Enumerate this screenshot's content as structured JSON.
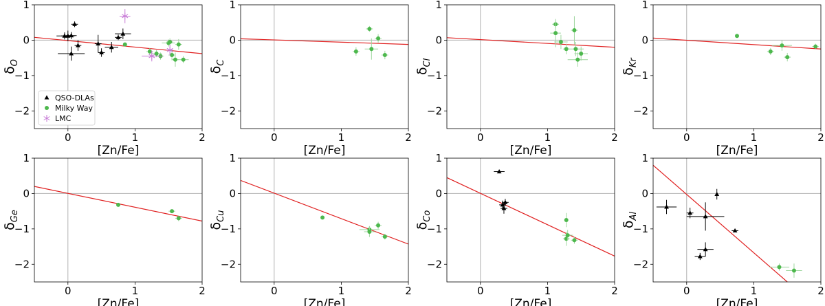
{
  "colors": {
    "qso": "#000000",
    "mw": "#4db84d",
    "mw_err": "#9ed69e",
    "lmc": "#c77ad6",
    "fit": "#e02020",
    "zero": "#b0b0b0"
  },
  "chart_data": [
    {
      "type": "scatter",
      "element": "O",
      "ylabel": "δ",
      "ysub": "O",
      "xlabel": "[Zn/Fe]",
      "xlim": [
        -0.5,
        2
      ],
      "ylim": [
        -2.5,
        1
      ],
      "xticks": [
        0,
        1,
        2
      ],
      "yticks": [
        1,
        0,
        -1,
        -2
      ],
      "fit": {
        "x": [
          -0.5,
          2.0
        ],
        "y": [
          0.08,
          -0.38
        ]
      },
      "legend": {
        "position": "bottom-left",
        "entries": [
          {
            "name": "QSO-DLAs",
            "series": "qso"
          },
          {
            "name": "Milky Way",
            "series": "mw"
          },
          {
            "name": "LMC",
            "series": "lmc"
          }
        ]
      },
      "series": [
        {
          "name": "QSO-DLAs",
          "key": "qso",
          "points": [
            {
              "x": -0.05,
              "y": 0.12,
              "xe": 0.12,
              "ye": 0.1
            },
            {
              "x": 0.0,
              "y": 0.12,
              "xe": 0.1,
              "ye": 0.15
            },
            {
              "x": 0.05,
              "y": 0.13,
              "xe": 0.08,
              "ye": 0.1
            },
            {
              "x": 0.1,
              "y": 0.45,
              "xe": 0.05,
              "ye": 0.08
            },
            {
              "x": 0.05,
              "y": -0.38,
              "xe": 0.2,
              "ye": 0.2
            },
            {
              "x": 0.15,
              "y": -0.15,
              "xe": 0.05,
              "ye": 0.15
            },
            {
              "x": 0.45,
              "y": -0.1,
              "xe": 0.05,
              "ye": 0.25
            },
            {
              "x": 0.5,
              "y": -0.35,
              "xe": 0.05,
              "ye": 0.12
            },
            {
              "x": 0.65,
              "y": -0.2,
              "xe": 0.1,
              "ye": 0.15
            },
            {
              "x": 0.75,
              "y": 0.08,
              "xe": 0.05,
              "ye": 0.08
            },
            {
              "x": 0.82,
              "y": 0.18,
              "xe": 0.12,
              "ye": 0.15
            }
          ]
        },
        {
          "name": "Milky Way",
          "key": "mw",
          "points": [
            {
              "x": 0.85,
              "y": -0.12,
              "xe": 0.0,
              "ye": 0.05
            },
            {
              "x": 1.22,
              "y": -0.32,
              "xe": 0.05,
              "ye": 0.1
            },
            {
              "x": 1.32,
              "y": -0.38,
              "xe": 0.08,
              "ye": 0.1
            },
            {
              "x": 1.38,
              "y": -0.45,
              "xe": 0.05,
              "ye": 0.1
            },
            {
              "x": 1.5,
              "y": -0.08,
              "xe": 0.1,
              "ye": 0.1
            },
            {
              "x": 1.52,
              "y": -0.05,
              "xe": 0.05,
              "ye": 0.1
            },
            {
              "x": 1.55,
              "y": -0.42,
              "xe": 0.05,
              "ye": 0.15
            },
            {
              "x": 1.6,
              "y": -0.55,
              "xe": 0.05,
              "ye": 0.2
            },
            {
              "x": 1.65,
              "y": -0.12,
              "xe": 0.05,
              "ye": 0.15
            },
            {
              "x": 1.72,
              "y": -0.55,
              "xe": 0.08,
              "ye": 0.1
            }
          ]
        },
        {
          "name": "LMC",
          "key": "lmc",
          "points": [
            {
              "x": 0.85,
              "y": 0.68,
              "xe": 0.08,
              "ye": 0.2
            },
            {
              "x": 1.25,
              "y": -0.45,
              "xe": 0.15,
              "ye": 0.15
            },
            {
              "x": 1.52,
              "y": -0.28,
              "xe": 0.05,
              "ye": 0.15
            }
          ]
        }
      ]
    },
    {
      "type": "scatter",
      "element": "C",
      "ylabel": "δ",
      "ysub": "C",
      "xlabel": "[Zn/Fe]",
      "xlim": [
        -0.5,
        2
      ],
      "ylim": [
        -2.5,
        1
      ],
      "xticks": [
        0,
        1,
        2
      ],
      "yticks": [
        1,
        0,
        -1,
        -2
      ],
      "fit": {
        "x": [
          -0.5,
          2.0
        ],
        "y": [
          0.04,
          -0.12
        ]
      },
      "series": [
        {
          "name": "Milky Way",
          "key": "mw",
          "points": [
            {
              "x": 1.22,
              "y": -0.32,
              "xe": 0.05,
              "ye": 0.12
            },
            {
              "x": 1.42,
              "y": 0.32,
              "xe": 0.05,
              "ye": 0.08
            },
            {
              "x": 1.45,
              "y": -0.25,
              "xe": 0.1,
              "ye": 0.3
            },
            {
              "x": 1.55,
              "y": 0.05,
              "xe": 0.05,
              "ye": 0.12
            },
            {
              "x": 1.65,
              "y": -0.42,
              "xe": 0.05,
              "ye": 0.12
            }
          ]
        }
      ]
    },
    {
      "type": "scatter",
      "element": "Cl",
      "ylabel": "δ",
      "ysub": "Cl",
      "xlabel": "[Zn/Fe]",
      "xlim": [
        -0.5,
        2
      ],
      "ylim": [
        -2.5,
        1
      ],
      "xticks": [
        0,
        1,
        2
      ],
      "yticks": [
        1,
        0,
        -1,
        -2
      ],
      "fit": {
        "x": [
          -0.5,
          2.0
        ],
        "y": [
          0.07,
          -0.2
        ]
      },
      "series": [
        {
          "name": "Milky Way",
          "key": "mw",
          "points": [
            {
              "x": 1.12,
              "y": 0.45,
              "xe": 0.05,
              "ye": 0.1
            },
            {
              "x": 1.12,
              "y": 0.2,
              "xe": 0.08,
              "ye": 0.4
            },
            {
              "x": 1.2,
              "y": -0.05,
              "xe": 0.1,
              "ye": 0.2
            },
            {
              "x": 1.28,
              "y": -0.25,
              "xe": 0.05,
              "ye": 0.15
            },
            {
              "x": 1.4,
              "y": 0.28,
              "xe": 0.05,
              "ye": 0.4
            },
            {
              "x": 1.42,
              "y": -0.25,
              "xe": 0.12,
              "ye": 0.2
            },
            {
              "x": 1.45,
              "y": -0.55,
              "xe": 0.15,
              "ye": 0.2
            },
            {
              "x": 1.5,
              "y": -0.38,
              "xe": 0.1,
              "ye": 0.2
            }
          ]
        }
      ]
    },
    {
      "type": "scatter",
      "element": "Kr",
      "ylabel": "δ",
      "ysub": "Kr",
      "xlabel": "[Zn/Fe]",
      "xlim": [
        -0.5,
        2
      ],
      "ylim": [
        -2.5,
        1
      ],
      "xticks": [
        0,
        1,
        2
      ],
      "yticks": [
        1,
        0,
        -1,
        -2
      ],
      "fit": {
        "x": [
          -0.5,
          2.0
        ],
        "y": [
          0.06,
          -0.25
        ]
      },
      "series": [
        {
          "name": "Milky Way",
          "key": "mw",
          "points": [
            {
              "x": 0.75,
              "y": 0.12,
              "xe": 0.0,
              "ye": 0.05
            },
            {
              "x": 1.25,
              "y": -0.32,
              "xe": 0.05,
              "ye": 0.1
            },
            {
              "x": 1.42,
              "y": -0.15,
              "xe": 0.15,
              "ye": 0.15
            },
            {
              "x": 1.5,
              "y": -0.48,
              "xe": 0.05,
              "ye": 0.12
            },
            {
              "x": 1.92,
              "y": -0.18,
              "xe": 0.05,
              "ye": 0.08
            }
          ]
        }
      ]
    },
    {
      "type": "scatter",
      "element": "Ge",
      "ylabel": "δ",
      "ysub": "Ge",
      "xlabel": "[Zn/Fe]",
      "xlim": [
        -0.5,
        2
      ],
      "ylim": [
        -2.5,
        1
      ],
      "xticks": [
        0,
        1,
        2
      ],
      "yticks": [
        1,
        0,
        -1,
        -2
      ],
      "fit": {
        "x": [
          -0.5,
          2.0
        ],
        "y": [
          0.2,
          -0.78
        ]
      },
      "series": [
        {
          "name": "Milky Way",
          "key": "mw",
          "points": [
            {
              "x": 0.75,
              "y": -0.32,
              "xe": 0.0,
              "ye": 0.05
            },
            {
              "x": 1.55,
              "y": -0.5,
              "xe": 0.05,
              "ye": 0.05
            },
            {
              "x": 1.65,
              "y": -0.7,
              "xe": 0.05,
              "ye": 0.08
            }
          ]
        }
      ]
    },
    {
      "type": "scatter",
      "element": "Cu",
      "ylabel": "δ",
      "ysub": "Cu",
      "xlabel": "[Zn/Fe]",
      "xlim": [
        -0.5,
        2
      ],
      "ylim": [
        -2.5,
        1
      ],
      "xticks": [
        0,
        1,
        2
      ],
      "yticks": [
        1,
        0,
        -1,
        -2
      ],
      "fit": {
        "x": [
          -0.5,
          2.0
        ],
        "y": [
          0.37,
          -1.43
        ]
      },
      "series": [
        {
          "name": "Milky Way",
          "key": "mw",
          "points": [
            {
              "x": 0.72,
              "y": -0.68,
              "xe": 0.0,
              "ye": 0.05
            },
            {
              "x": 1.42,
              "y": -1.02,
              "xe": 0.15,
              "ye": 0.1
            },
            {
              "x": 1.42,
              "y": -1.08,
              "xe": 0.08,
              "ye": 0.15
            },
            {
              "x": 1.55,
              "y": -0.9,
              "xe": 0.05,
              "ye": 0.1
            },
            {
              "x": 1.65,
              "y": -1.22,
              "xe": 0.05,
              "ye": 0.08
            }
          ]
        }
      ]
    },
    {
      "type": "scatter",
      "element": "Co",
      "ylabel": "δ",
      "ysub": "Co",
      "xlabel": "[Zn/Fe]",
      "xlim": [
        -0.5,
        2
      ],
      "ylim": [
        -2.5,
        1
      ],
      "xticks": [
        0,
        1,
        2
      ],
      "yticks": [
        1,
        0,
        -1,
        -2
      ],
      "fit": {
        "x": [
          -0.5,
          2.0
        ],
        "y": [
          0.45,
          -1.77
        ]
      },
      "series": [
        {
          "name": "QSO-DLAs",
          "key": "qso",
          "points": [
            {
              "x": 0.28,
              "y": 0.62,
              "xe": 0.08,
              "ye": 0.05
            },
            {
              "x": 0.33,
              "y": -0.32,
              "xe": 0.05,
              "ye": 0.12
            },
            {
              "x": 0.35,
              "y": -0.42,
              "xe": 0.05,
              "ye": 0.15
            },
            {
              "x": 0.37,
              "y": -0.25,
              "xe": 0.05,
              "ye": 0.1
            }
          ]
        },
        {
          "name": "Milky Way",
          "key": "mw",
          "points": [
            {
              "x": 1.28,
              "y": -0.75,
              "xe": 0.0,
              "ye": 0.2
            },
            {
              "x": 1.28,
              "y": -1.28,
              "xe": 0.05,
              "ye": 0.2
            },
            {
              "x": 1.3,
              "y": -1.18,
              "xe": 0.08,
              "ye": 0.15
            },
            {
              "x": 1.4,
              "y": -1.32,
              "xe": 0.05,
              "ye": 0.1
            }
          ]
        }
      ]
    },
    {
      "type": "scatter",
      "element": "Al",
      "ylabel": "δ",
      "ysub": "Al",
      "xlabel": "[Zn/Fe]",
      "xlim": [
        -0.5,
        2
      ],
      "ylim": [
        -2.5,
        1
      ],
      "xticks": [
        0,
        1,
        2
      ],
      "yticks": [
        1,
        0,
        -1,
        -2
      ],
      "fit": {
        "x": [
          -0.5,
          1.5
        ],
        "y": [
          0.8,
          -2.5
        ]
      },
      "series": [
        {
          "name": "QSO-DLAs",
          "key": "qso",
          "points": [
            {
              "x": -0.3,
              "y": -0.38,
              "xe": 0.15,
              "ye": 0.2
            },
            {
              "x": 0.05,
              "y": -0.55,
              "xe": 0.05,
              "ye": 0.15
            },
            {
              "x": 0.2,
              "y": -1.78,
              "xe": 0.08,
              "ye": 0.1
            },
            {
              "x": 0.28,
              "y": -0.65,
              "xe": 0.28,
              "ye": 0.4
            },
            {
              "x": 0.28,
              "y": -1.58,
              "xe": 0.12,
              "ye": 0.2
            },
            {
              "x": 0.45,
              "y": -0.02,
              "xe": 0.0,
              "ye": 0.15
            },
            {
              "x": 0.72,
              "y": -1.05,
              "xe": 0.05,
              "ye": 0.05
            }
          ]
        },
        {
          "name": "Milky Way",
          "key": "mw",
          "points": [
            {
              "x": 1.38,
              "y": -2.08,
              "xe": 0.15,
              "ye": 0.1
            },
            {
              "x": 1.6,
              "y": -2.18,
              "xe": 0.12,
              "ye": 0.2
            }
          ]
        }
      ]
    }
  ]
}
